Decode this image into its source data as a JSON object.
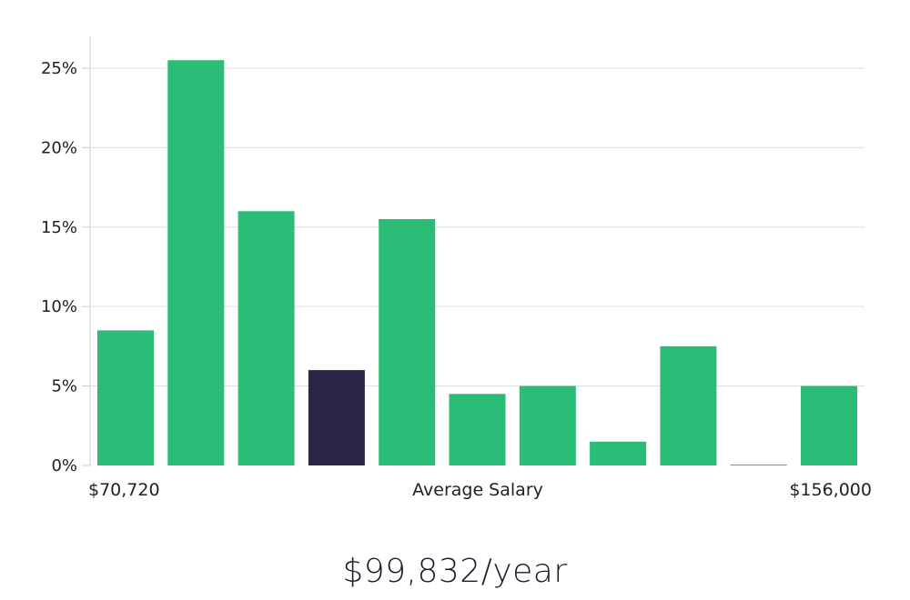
{
  "chart_data": {
    "type": "bar",
    "title": "",
    "xlabel": "Average Salary",
    "ylabel": "",
    "x_range_labels": {
      "min": "$70,720",
      "max": "$156,000"
    },
    "ylim": [
      0,
      27
    ],
    "yticks": [
      0,
      5,
      10,
      15,
      20,
      25
    ],
    "ytick_labels": [
      "0%",
      "5%",
      "10%",
      "15%",
      "20%",
      "25%"
    ],
    "grid": true,
    "values": [
      8.5,
      25.5,
      16.0,
      6.0,
      15.5,
      4.5,
      5.0,
      1.5,
      7.5,
      0.05,
      5.0
    ],
    "highlight_index": 3,
    "colors": {
      "bar": "#2bbd77",
      "highlight": "#2a2547",
      "grid": "#dddddd",
      "axis": "#cccccc"
    }
  },
  "summary": {
    "salary": "$99,832/year"
  }
}
